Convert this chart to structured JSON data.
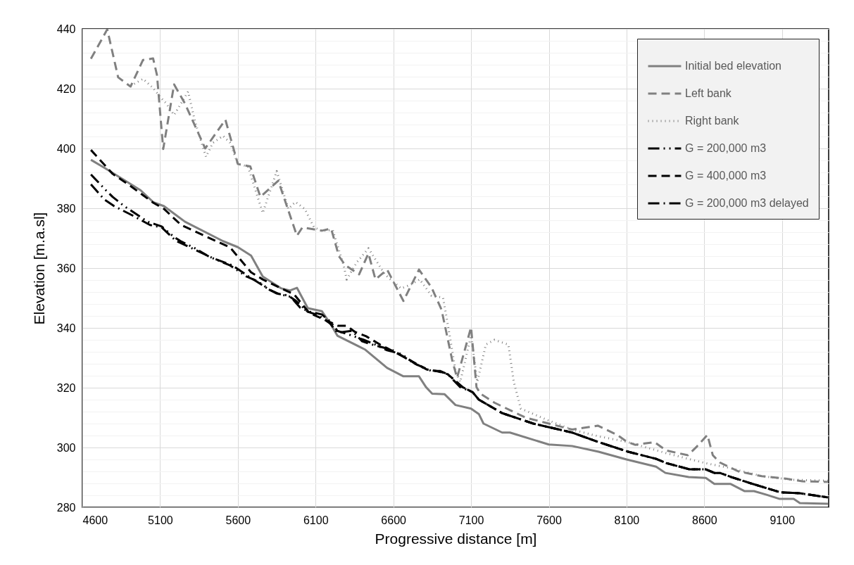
{
  "chart_data": {
    "type": "line",
    "xlabel": "Progressive distance [m]",
    "ylabel": "Elevation [m.a.sl]",
    "xlim": [
      4600,
      9400
    ],
    "xticks": [
      4600,
      5100,
      5600,
      6100,
      6600,
      7100,
      7600,
      8100,
      8600,
      9100
    ],
    "ylim": [
      280,
      440
    ],
    "yticks": [
      280,
      {
        "value": 284,
        "label": null
      },
      {
        "value": 288,
        "label": null
      },
      {
        "value": 292,
        "label": null
      },
      {
        "value": 296,
        "label": null
      },
      300,
      {
        "value": 304,
        "label": null
      },
      {
        "value": 308,
        "label": null
      },
      {
        "value": 312,
        "label": null
      },
      {
        "value": 316,
        "label": null
      },
      320,
      {
        "value": 324,
        "label": null
      },
      {
        "value": 328,
        "label": null
      },
      {
        "value": 332,
        "label": null
      },
      {
        "value": 336,
        "label": null
      },
      340,
      {
        "value": 344,
        "label": null
      },
      {
        "value": 348,
        "label": null
      },
      {
        "value": 352,
        "label": null
      },
      {
        "value": 356,
        "label": null
      },
      360,
      {
        "value": 364,
        "label": null
      },
      {
        "value": 368,
        "label": null
      },
      {
        "value": 372,
        "label": null
      },
      {
        "value": 376,
        "label": null
      },
      380,
      {
        "value": 384,
        "label": null
      },
      {
        "value": 388,
        "label": null
      },
      {
        "value": 392,
        "label": null
      },
      {
        "value": 396,
        "label": null
      },
      400,
      {
        "value": 404,
        "label": null
      },
      {
        "value": 408,
        "label": null
      },
      {
        "value": 412,
        "label": null
      },
      {
        "value": 416,
        "label": null
      },
      420,
      {
        "value": 424,
        "label": null
      },
      {
        "value": 428,
        "label": null
      },
      {
        "value": 432,
        "label": null
      },
      {
        "value": 436,
        "label": null
      },
      440
    ],
    "grid": true,
    "legend": "top right",
    "series": [
      {
        "name": "Initial bed elevation",
        "color": "#808080",
        "line_style": "solid",
        "x": [
          4655,
          4740,
          4975,
          5057,
          5125,
          5260,
          5505,
          5600,
          5685,
          5760,
          5880,
          5935,
          5980,
          6050,
          6140,
          6195,
          6240,
          6420,
          6560,
          6665,
          6765,
          6810,
          6850,
          6930,
          7000,
          7100,
          7150,
          7180,
          7300,
          7350,
          7600,
          7750,
          7920,
          8100,
          8290,
          8350,
          8500,
          8610,
          8665,
          8770,
          8860,
          8920,
          9000,
          9085,
          9175,
          9215,
          9395
        ],
        "values": [
          396.2,
          393.6,
          386,
          382,
          380.7,
          375.5,
          369,
          367,
          364.2,
          357.2,
          353.2,
          352.5,
          353.4,
          346.6,
          345.6,
          341.4,
          337.4,
          332.7,
          326.6,
          323.8,
          323.8,
          320.2,
          318,
          317.8,
          314.2,
          313,
          311.2,
          308,
          305,
          305,
          301,
          300.5,
          298.6,
          296,
          293.6,
          291.5,
          290.1,
          289.8,
          287.8,
          287.8,
          285.4,
          285.4,
          284.2,
          282.8,
          282.8,
          281.4,
          281.2
        ]
      },
      {
        "name": "Left bank",
        "color": "#808080",
        "line_style": "dashed",
        "x": [
          4655,
          4760,
          4830,
          4910,
          4990,
          5055,
          5080,
          5120,
          5190,
          5260,
          5390,
          5520,
          5600,
          5680,
          5745,
          5860,
          5980,
          6015,
          6140,
          6200,
          6250,
          6290,
          6380,
          6440,
          6485,
          6560,
          6665,
          6765,
          6845,
          6910,
          6980,
          7010,
          7100,
          7135,
          7160,
          7250,
          7350,
          7450,
          7600,
          7750,
          7915,
          8040,
          8100,
          8155,
          8280,
          8355,
          8495,
          8550,
          8620,
          8655,
          8700,
          8820,
          8970,
          9125,
          9230,
          9395
        ],
        "values": [
          430,
          439.8,
          423.8,
          420.7,
          429.6,
          430.1,
          424.5,
          399.8,
          421.4,
          415,
          400,
          409.6,
          394.8,
          394,
          383.8,
          389.2,
          370.8,
          373.6,
          372.5,
          373.2,
          364,
          361,
          357.9,
          364.9,
          356.2,
          359.5,
          349,
          359.5,
          353.6,
          346.1,
          328.9,
          323.3,
          340.2,
          320.2,
          318,
          315,
          312.5,
          310,
          308,
          306,
          307.3,
          304.2,
          302,
          300.9,
          301.8,
          299,
          297.4,
          300.2,
          304.2,
          297.4,
          295,
          292,
          290.4,
          289.6,
          288.7,
          288.5
        ]
      },
      {
        "name": "Right bank",
        "color": "#808080",
        "line_style": "dotted",
        "x": [
          4910,
          4990,
          5055,
          5110,
          5140,
          5190,
          5280,
          5325,
          5395,
          5440,
          5505,
          5550,
          5600,
          5665,
          5760,
          5850,
          5925,
          5970,
          6030,
          6090,
          6140,
          6210,
          6280,
          6300,
          6365,
          6440,
          6545,
          6650,
          6710,
          6770,
          6845,
          6920,
          6965,
          7000,
          7030,
          7100,
          7140,
          7195,
          7250,
          7340,
          7375,
          7420,
          7600,
          7750,
          7915,
          8100,
          8370,
          8605,
          8760,
          8970,
          9170,
          9395
        ],
        "values": [
          420.9,
          423.3,
          420.2,
          416.7,
          415,
          411.2,
          419,
          408.9,
          397.2,
          401.9,
          404.2,
          401.9,
          394.8,
          394,
          378.4,
          392.4,
          379.8,
          382.1,
          379.8,
          373.6,
          372.5,
          372.7,
          361,
          356.2,
          361.9,
          366.6,
          357.9,
          353.2,
          354.4,
          356.2,
          350.8,
          350.1,
          336.7,
          325.6,
          321.9,
          337.4,
          321.9,
          334.4,
          336,
          334.4,
          321.9,
          313,
          309,
          306,
          303.8,
          301.9,
          297.9,
          294.8,
          293.2,
          290.4,
          289.2,
          288.9
        ]
      },
      {
        "name": "G = 200,000 m3",
        "color": "#000000",
        "line_style": "dashdotdot",
        "x": [
          4655,
          4750,
          4795,
          4870,
          4965,
          5020,
          5110,
          5190,
          5235,
          5325,
          5415,
          5550,
          5655,
          5730,
          5805,
          5865,
          5940,
          6000,
          6060,
          6140,
          6195,
          6240,
          6335,
          6410,
          6485,
          6560,
          6650,
          6740,
          6815,
          6900,
          6950,
          7045,
          7110,
          7150,
          7300,
          7500,
          7750,
          7915,
          8110,
          8290,
          8355,
          8505,
          8610,
          8665,
          8700,
          8775,
          8900,
          9090,
          9215,
          9395
        ],
        "values": [
          391.3,
          386.1,
          383.8,
          380.7,
          377.4,
          375.5,
          373.9,
          370.4,
          368.9,
          366.6,
          363.8,
          360.9,
          357.2,
          355.5,
          352.7,
          351.3,
          350.4,
          346.8,
          345.4,
          344.5,
          342.1,
          339,
          337.4,
          336,
          334.4,
          332.5,
          331.3,
          328,
          326.1,
          325.4,
          324.5,
          320.2,
          318.5,
          316,
          311.5,
          308,
          305,
          301.9,
          298.6,
          296.2,
          294.8,
          292.7,
          292.7,
          291.5,
          291.5,
          290.1,
          288,
          285,
          284.7,
          283.3
        ]
      },
      {
        "name": "G = 400,000 m3",
        "color": "#000000",
        "line_style": "dashed",
        "x": [
          4655,
          4795,
          4900,
          5055,
          5125,
          5235,
          5550,
          5685,
          5760,
          5880,
          5960,
          6060,
          6245,
          6300,
          6355,
          6425,
          6515,
          6665,
          6815,
          6890,
          6950,
          7045,
          7110,
          7150,
          7300,
          7500,
          7750,
          7915,
          8110,
          8290,
          8355,
          8505,
          8610,
          8665,
          8700,
          8775,
          8900,
          9090,
          9215,
          9395
        ],
        "values": [
          399.5,
          391.5,
          387.8,
          381.9,
          379.8,
          374.4,
          366.9,
          358.6,
          356.2,
          353.2,
          351.3,
          345,
          340.7,
          340.7,
          338.6,
          337.2,
          334.4,
          330.4,
          326.1,
          325.4,
          324.5,
          320.2,
          318.5,
          316,
          311.5,
          308,
          305,
          301.9,
          298.6,
          296.2,
          294.8,
          292.7,
          292.7,
          291.5,
          291.5,
          290.1,
          288,
          285,
          284.7,
          283.3
        ]
      },
      {
        "name": "G = 200,000 m3 delayed",
        "color": "#000000",
        "line_style": "dashdot",
        "x": [
          4655,
          4740,
          4805,
          4930,
          5035,
          5110,
          5200,
          5305,
          5440,
          5565,
          5670,
          5790,
          5850,
          5925,
          5970,
          6050,
          6120,
          6195,
          6240,
          6335,
          6400,
          6465,
          6590,
          6740,
          6845,
          6900,
          6950,
          7030,
          7110,
          7150,
          7300,
          7500,
          7750,
          7915,
          8110,
          8290,
          8355,
          8505,
          8610,
          8665,
          8700,
          8775,
          8900,
          9090,
          9215,
          9395
        ],
        "values": [
          388,
          383,
          380.7,
          377.4,
          374.4,
          373.6,
          369.2,
          366.6,
          363.3,
          360.9,
          357.2,
          353.2,
          351.5,
          350.8,
          349.2,
          345.4,
          344.2,
          341.4,
          338.4,
          339,
          335.5,
          334.4,
          332.7,
          328,
          325.6,
          325.6,
          324.5,
          320.2,
          318.5,
          316,
          311.5,
          308,
          305,
          301.9,
          298.6,
          296.2,
          294.8,
          292.7,
          292.7,
          291.5,
          291.5,
          290.1,
          288,
          285,
          284.7,
          283.3
        ]
      }
    ]
  }
}
